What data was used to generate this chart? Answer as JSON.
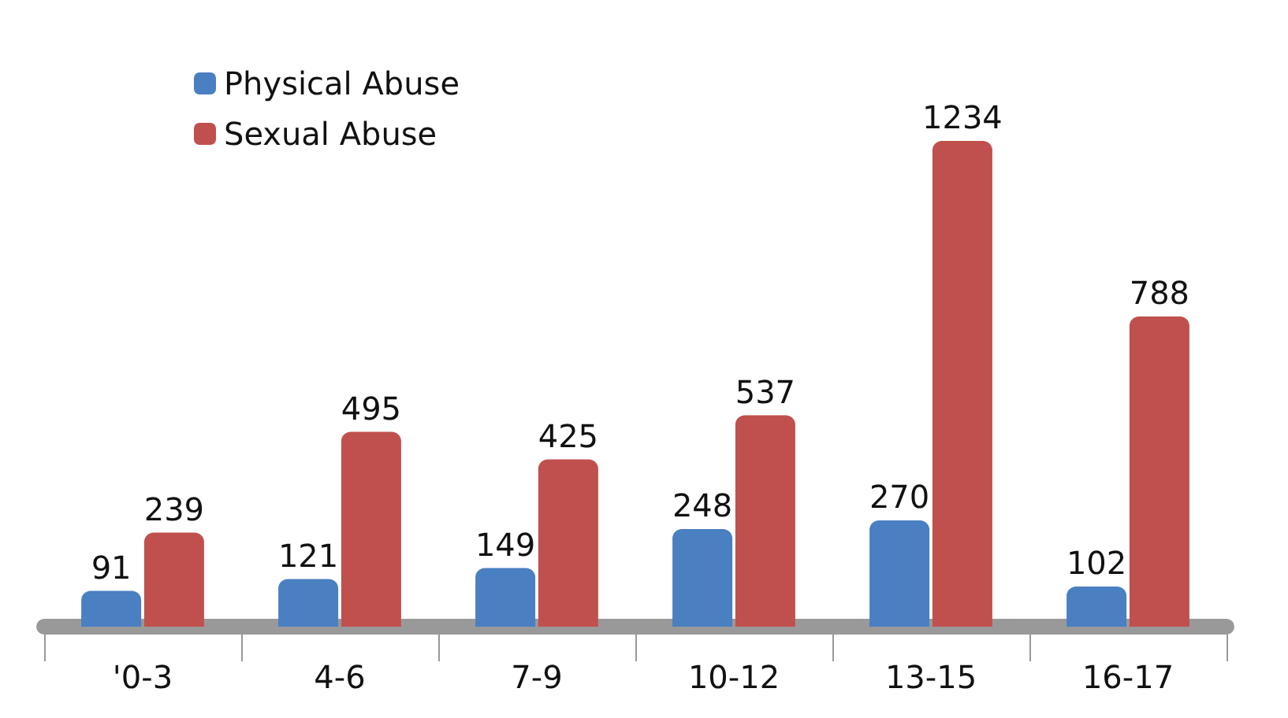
{
  "chart_data": {
    "type": "bar",
    "categories": [
      "'0-3",
      "4-6",
      "7-9",
      "10-12",
      "13-15",
      "16-17"
    ],
    "series": [
      {
        "name": "Physical Abuse",
        "color": "#4a7fc1",
        "values": [
          91,
          121,
          149,
          248,
          270,
          102
        ]
      },
      {
        "name": "Sexual Abuse",
        "color": "#c0504d",
        "values": [
          239,
          495,
          425,
          537,
          1234,
          788
        ]
      }
    ],
    "data_labels": true,
    "legend": "top left",
    "grid": false,
    "tick_labels": "x"
  }
}
